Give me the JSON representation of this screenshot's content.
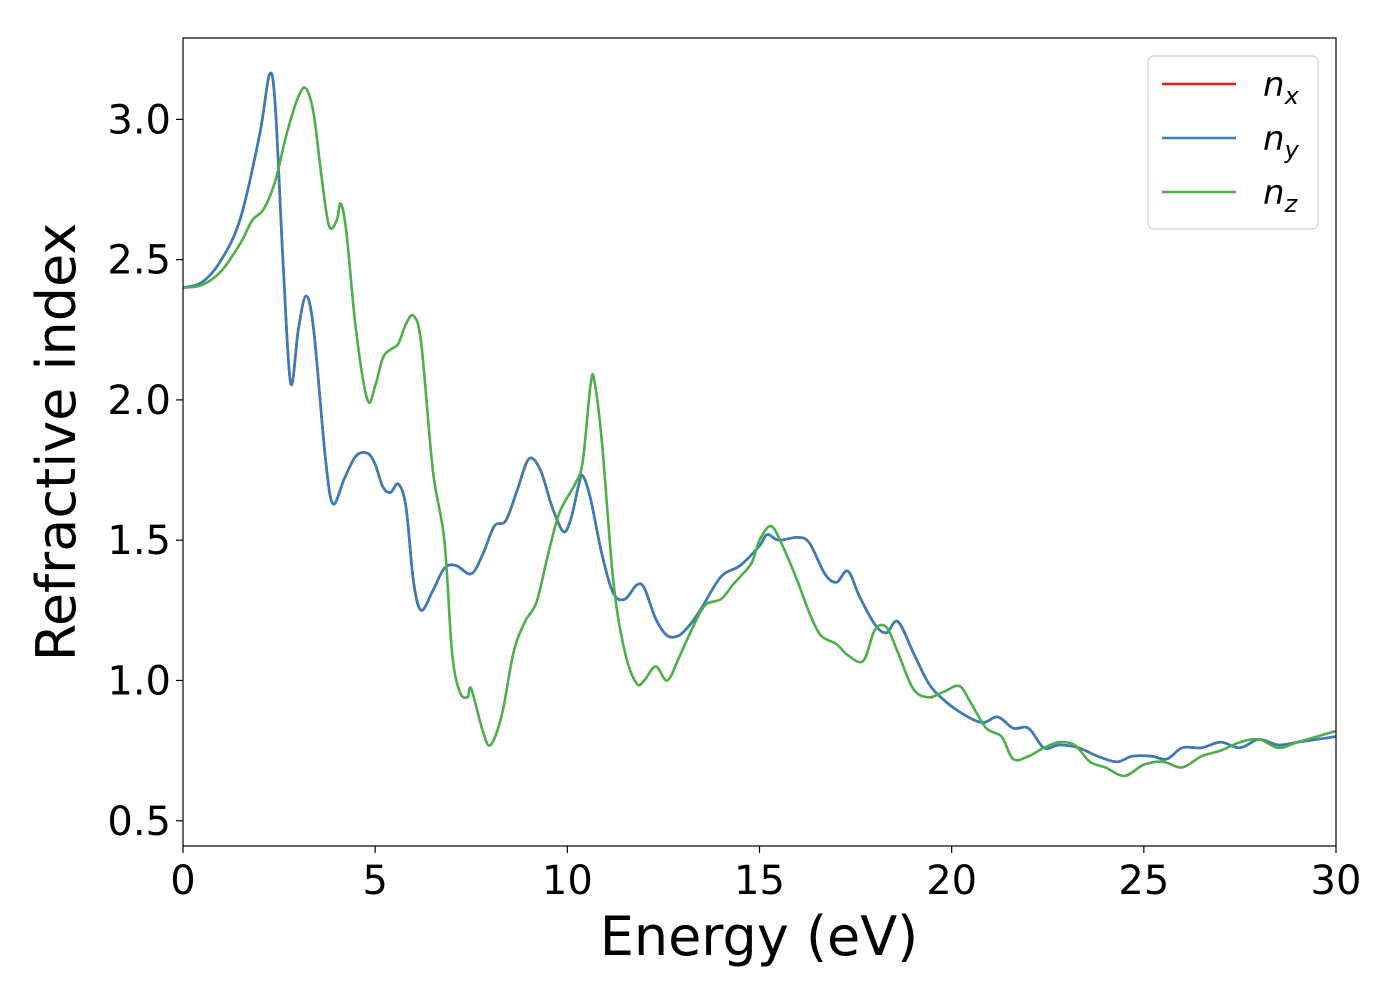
{
  "chart_data": {
    "type": "line",
    "xlabel": "Energy (eV)",
    "ylabel": "Refractive index",
    "xlim": [
      0,
      30
    ],
    "ylim": [
      0.41,
      3.29
    ],
    "xticks": [
      0,
      5,
      10,
      15,
      20,
      25,
      30
    ],
    "xtick_labels": [
      "0",
      "5",
      "10",
      "15",
      "20",
      "25",
      "30"
    ],
    "yticks": [
      0.5,
      1.0,
      1.5,
      2.0,
      2.5,
      3.0
    ],
    "ytick_labels": [
      "0.5",
      "1.0",
      "1.5",
      "2.0",
      "2.5",
      "3.0"
    ],
    "grid": false,
    "legend_position": "top-right",
    "series": [
      {
        "name": "n",
        "sub": "x",
        "color": "#e41a1c",
        "points": [
          [
            0,
            2.4
          ],
          [
            0.5,
            2.42
          ],
          [
            1.0,
            2.5
          ],
          [
            1.5,
            2.65
          ],
          [
            2.0,
            2.95
          ],
          [
            2.25,
            3.16
          ],
          [
            2.4,
            3.05
          ],
          [
            2.6,
            2.5
          ],
          [
            2.8,
            2.06
          ],
          [
            3.0,
            2.25
          ],
          [
            3.2,
            2.37
          ],
          [
            3.4,
            2.25
          ],
          [
            3.7,
            1.8
          ],
          [
            3.9,
            1.63
          ],
          [
            4.2,
            1.72
          ],
          [
            4.5,
            1.8
          ],
          [
            4.8,
            1.81
          ],
          [
            5.0,
            1.77
          ],
          [
            5.2,
            1.69
          ],
          [
            5.4,
            1.67
          ],
          [
            5.6,
            1.7
          ],
          [
            5.8,
            1.62
          ],
          [
            6.0,
            1.35
          ],
          [
            6.2,
            1.25
          ],
          [
            6.5,
            1.32
          ],
          [
            6.8,
            1.4
          ],
          [
            7.1,
            1.41
          ],
          [
            7.5,
            1.38
          ],
          [
            7.8,
            1.45
          ],
          [
            8.1,
            1.55
          ],
          [
            8.4,
            1.57
          ],
          [
            8.7,
            1.68
          ],
          [
            9.0,
            1.79
          ],
          [
            9.3,
            1.75
          ],
          [
            9.6,
            1.62
          ],
          [
            9.9,
            1.53
          ],
          [
            10.1,
            1.58
          ],
          [
            10.3,
            1.7
          ],
          [
            10.4,
            1.73
          ],
          [
            10.6,
            1.65
          ],
          [
            10.9,
            1.45
          ],
          [
            11.2,
            1.31
          ],
          [
            11.5,
            1.29
          ],
          [
            11.8,
            1.34
          ],
          [
            12.0,
            1.33
          ],
          [
            12.3,
            1.22
          ],
          [
            12.6,
            1.16
          ],
          [
            12.9,
            1.16
          ],
          [
            13.2,
            1.2
          ],
          [
            13.5,
            1.26
          ],
          [
            14.0,
            1.37
          ],
          [
            14.5,
            1.41
          ],
          [
            15.0,
            1.48
          ],
          [
            15.2,
            1.52
          ],
          [
            15.5,
            1.5
          ],
          [
            16.0,
            1.51
          ],
          [
            16.3,
            1.49
          ],
          [
            16.7,
            1.38
          ],
          [
            17.0,
            1.35
          ],
          [
            17.3,
            1.39
          ],
          [
            17.6,
            1.3
          ],
          [
            18.0,
            1.2
          ],
          [
            18.3,
            1.17
          ],
          [
            18.6,
            1.21
          ],
          [
            19.0,
            1.1
          ],
          [
            19.4,
            0.99
          ],
          [
            19.8,
            0.93
          ],
          [
            20.3,
            0.88
          ],
          [
            20.8,
            0.85
          ],
          [
            21.2,
            0.87
          ],
          [
            21.6,
            0.83
          ],
          [
            22.0,
            0.83
          ],
          [
            22.4,
            0.76
          ],
          [
            22.8,
            0.77
          ],
          [
            23.3,
            0.76
          ],
          [
            23.8,
            0.73
          ],
          [
            24.3,
            0.71
          ],
          [
            24.7,
            0.73
          ],
          [
            25.2,
            0.73
          ],
          [
            25.6,
            0.72
          ],
          [
            26.0,
            0.76
          ],
          [
            26.5,
            0.76
          ],
          [
            27.0,
            0.78
          ],
          [
            27.5,
            0.76
          ],
          [
            28.0,
            0.79
          ],
          [
            28.5,
            0.77
          ],
          [
            29.0,
            0.78
          ],
          [
            29.5,
            0.79
          ],
          [
            30.0,
            0.8
          ]
        ]
      },
      {
        "name": "n",
        "sub": "y",
        "color": "#377eb8",
        "points": [
          [
            0,
            2.4
          ],
          [
            0.5,
            2.42
          ],
          [
            1.0,
            2.5
          ],
          [
            1.5,
            2.65
          ],
          [
            2.0,
            2.95
          ],
          [
            2.25,
            3.16
          ],
          [
            2.4,
            3.05
          ],
          [
            2.6,
            2.5
          ],
          [
            2.8,
            2.06
          ],
          [
            3.0,
            2.25
          ],
          [
            3.2,
            2.37
          ],
          [
            3.4,
            2.25
          ],
          [
            3.7,
            1.8
          ],
          [
            3.9,
            1.63
          ],
          [
            4.2,
            1.72
          ],
          [
            4.5,
            1.8
          ],
          [
            4.8,
            1.81
          ],
          [
            5.0,
            1.77
          ],
          [
            5.2,
            1.69
          ],
          [
            5.4,
            1.67
          ],
          [
            5.6,
            1.7
          ],
          [
            5.8,
            1.62
          ],
          [
            6.0,
            1.35
          ],
          [
            6.2,
            1.25
          ],
          [
            6.5,
            1.32
          ],
          [
            6.8,
            1.4
          ],
          [
            7.1,
            1.41
          ],
          [
            7.5,
            1.38
          ],
          [
            7.8,
            1.45
          ],
          [
            8.1,
            1.55
          ],
          [
            8.4,
            1.57
          ],
          [
            8.7,
            1.68
          ],
          [
            9.0,
            1.79
          ],
          [
            9.3,
            1.75
          ],
          [
            9.6,
            1.62
          ],
          [
            9.9,
            1.53
          ],
          [
            10.1,
            1.58
          ],
          [
            10.3,
            1.7
          ],
          [
            10.4,
            1.73
          ],
          [
            10.6,
            1.65
          ],
          [
            10.9,
            1.45
          ],
          [
            11.2,
            1.31
          ],
          [
            11.5,
            1.29
          ],
          [
            11.8,
            1.34
          ],
          [
            12.0,
            1.33
          ],
          [
            12.3,
            1.22
          ],
          [
            12.6,
            1.16
          ],
          [
            12.9,
            1.16
          ],
          [
            13.2,
            1.2
          ],
          [
            13.5,
            1.26
          ],
          [
            14.0,
            1.37
          ],
          [
            14.5,
            1.41
          ],
          [
            15.0,
            1.48
          ],
          [
            15.2,
            1.52
          ],
          [
            15.5,
            1.5
          ],
          [
            16.0,
            1.51
          ],
          [
            16.3,
            1.49
          ],
          [
            16.7,
            1.38
          ],
          [
            17.0,
            1.35
          ],
          [
            17.3,
            1.39
          ],
          [
            17.6,
            1.3
          ],
          [
            18.0,
            1.2
          ],
          [
            18.3,
            1.17
          ],
          [
            18.6,
            1.21
          ],
          [
            19.0,
            1.1
          ],
          [
            19.4,
            0.99
          ],
          [
            19.8,
            0.93
          ],
          [
            20.3,
            0.88
          ],
          [
            20.8,
            0.85
          ],
          [
            21.2,
            0.87
          ],
          [
            21.6,
            0.83
          ],
          [
            22.0,
            0.83
          ],
          [
            22.4,
            0.76
          ],
          [
            22.8,
            0.77
          ],
          [
            23.3,
            0.76
          ],
          [
            23.8,
            0.73
          ],
          [
            24.3,
            0.71
          ],
          [
            24.7,
            0.73
          ],
          [
            25.2,
            0.73
          ],
          [
            25.6,
            0.72
          ],
          [
            26.0,
            0.76
          ],
          [
            26.5,
            0.76
          ],
          [
            27.0,
            0.78
          ],
          [
            27.5,
            0.76
          ],
          [
            28.0,
            0.79
          ],
          [
            28.5,
            0.77
          ],
          [
            29.0,
            0.78
          ],
          [
            29.5,
            0.79
          ],
          [
            30.0,
            0.8
          ]
        ]
      },
      {
        "name": "n",
        "sub": "z",
        "color": "#4daf4a",
        "points": [
          [
            0,
            2.4
          ],
          [
            0.5,
            2.41
          ],
          [
            1.0,
            2.46
          ],
          [
            1.5,
            2.56
          ],
          [
            1.8,
            2.64
          ],
          [
            2.1,
            2.68
          ],
          [
            2.4,
            2.78
          ],
          [
            2.7,
            2.95
          ],
          [
            3.0,
            3.08
          ],
          [
            3.2,
            3.11
          ],
          [
            3.4,
            3.02
          ],
          [
            3.6,
            2.8
          ],
          [
            3.8,
            2.62
          ],
          [
            4.0,
            2.64
          ],
          [
            4.1,
            2.7
          ],
          [
            4.25,
            2.6
          ],
          [
            4.5,
            2.25
          ],
          [
            4.8,
            2.0
          ],
          [
            5.0,
            2.05
          ],
          [
            5.2,
            2.15
          ],
          [
            5.4,
            2.18
          ],
          [
            5.6,
            2.2
          ],
          [
            5.8,
            2.27
          ],
          [
            6.0,
            2.3
          ],
          [
            6.2,
            2.2
          ],
          [
            6.5,
            1.75
          ],
          [
            6.8,
            1.5
          ],
          [
            7.0,
            1.1
          ],
          [
            7.2,
            0.96
          ],
          [
            7.4,
            0.94
          ],
          [
            7.5,
            0.97
          ],
          [
            7.8,
            0.82
          ],
          [
            8.0,
            0.77
          ],
          [
            8.3,
            0.88
          ],
          [
            8.6,
            1.1
          ],
          [
            8.9,
            1.21
          ],
          [
            9.2,
            1.28
          ],
          [
            9.5,
            1.45
          ],
          [
            9.8,
            1.6
          ],
          [
            10.2,
            1.7
          ],
          [
            10.4,
            1.78
          ],
          [
            10.6,
            2.05
          ],
          [
            10.7,
            2.07
          ],
          [
            10.9,
            1.85
          ],
          [
            11.2,
            1.35
          ],
          [
            11.5,
            1.1
          ],
          [
            11.8,
            0.99
          ],
          [
            12.0,
            1.0
          ],
          [
            12.3,
            1.05
          ],
          [
            12.6,
            1.0
          ],
          [
            12.9,
            1.08
          ],
          [
            13.3,
            1.2
          ],
          [
            13.6,
            1.27
          ],
          [
            14.0,
            1.29
          ],
          [
            14.3,
            1.34
          ],
          [
            14.5,
            1.37
          ],
          [
            14.8,
            1.42
          ],
          [
            15.0,
            1.5
          ],
          [
            15.3,
            1.55
          ],
          [
            15.6,
            1.48
          ],
          [
            16.0,
            1.35
          ],
          [
            16.3,
            1.24
          ],
          [
            16.6,
            1.16
          ],
          [
            17.0,
            1.13
          ],
          [
            17.3,
            1.09
          ],
          [
            17.7,
            1.07
          ],
          [
            18.0,
            1.18
          ],
          [
            18.3,
            1.19
          ],
          [
            18.6,
            1.1
          ],
          [
            19.0,
            0.97
          ],
          [
            19.4,
            0.94
          ],
          [
            19.8,
            0.96
          ],
          [
            20.2,
            0.98
          ],
          [
            20.5,
            0.92
          ],
          [
            20.9,
            0.83
          ],
          [
            21.3,
            0.8
          ],
          [
            21.6,
            0.72
          ],
          [
            22.0,
            0.73
          ],
          [
            22.4,
            0.76
          ],
          [
            22.8,
            0.78
          ],
          [
            23.2,
            0.77
          ],
          [
            23.6,
            0.71
          ],
          [
            24.0,
            0.69
          ],
          [
            24.5,
            0.66
          ],
          [
            25.0,
            0.7
          ],
          [
            25.5,
            0.71
          ],
          [
            26.0,
            0.69
          ],
          [
            26.5,
            0.73
          ],
          [
            27.0,
            0.75
          ],
          [
            27.5,
            0.78
          ],
          [
            28.0,
            0.79
          ],
          [
            28.5,
            0.76
          ],
          [
            29.0,
            0.78
          ],
          [
            29.5,
            0.8
          ],
          [
            30.0,
            0.82
          ]
        ]
      }
    ]
  }
}
